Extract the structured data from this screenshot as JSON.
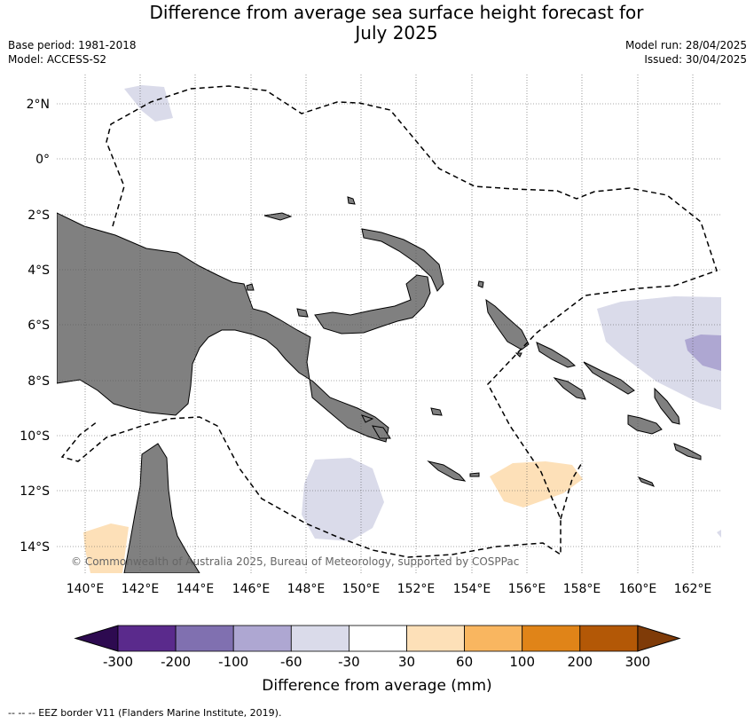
{
  "title_line1": "Difference from average sea surface height forecast for",
  "title_line2": "July 2025",
  "base_period": "Base period: 1981-2018",
  "model": "Model: ACCESS-S2",
  "model_run": "Model run: 28/04/2025",
  "issued": "Issued: 30/04/2025",
  "copyright": "© Commonwealth of Australia 2025, Bureau of Meteorology, supported by COSPPac",
  "lat_labels": [
    "2°N",
    "0°",
    "2°S",
    "4°S",
    "6°S",
    "8°S",
    "10°S",
    "12°S",
    "14°S"
  ],
  "lon_labels": [
    "140°E",
    "142°E",
    "144°E",
    "146°E",
    "148°E",
    "150°E",
    "152°E",
    "154°E",
    "156°E",
    "158°E",
    "160°E",
    "162°E"
  ],
  "colorbar": {
    "label": "Difference from average (mm)",
    "ticks": [
      "-300",
      "-200",
      "-100",
      "-60",
      "-30",
      "30",
      "60",
      "100",
      "200",
      "300"
    ],
    "colors": [
      "#5a2a8c",
      "#8070b0",
      "#aea7d2",
      "#dadbea",
      "#ffffff",
      "#fde0b8",
      "#f9b660",
      "#e08418",
      "#b35806"
    ],
    "extend_low_color": "#2d0a50",
    "extend_high_color": "#7f3b08"
  },
  "footnote": "-- -- -- EEZ border V11 (Flanders Marine Institute, 2019)."
}
